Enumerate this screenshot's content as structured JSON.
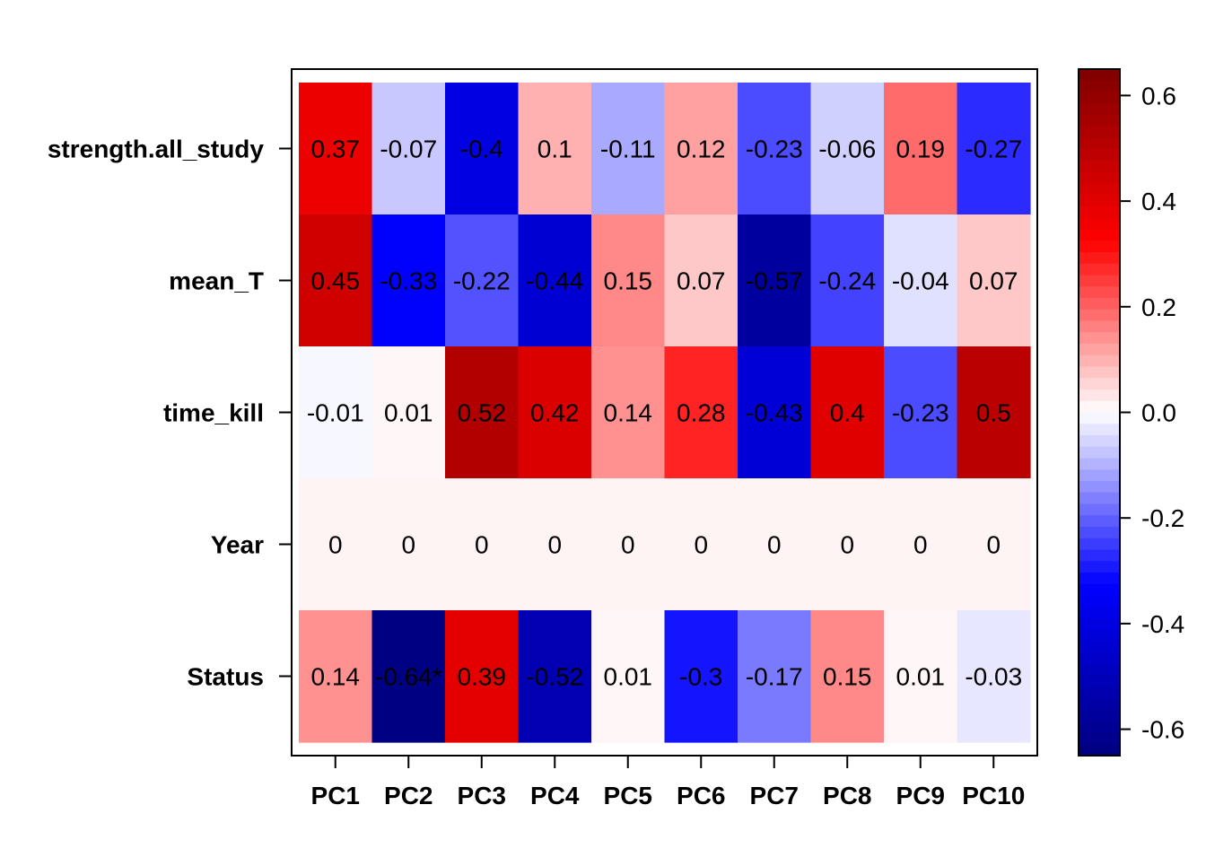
{
  "chart_data": {
    "type": "heatmap",
    "rows": [
      "strength.all_study",
      "mean_T",
      "time_kill",
      "Year",
      "Status"
    ],
    "columns": [
      "PC1",
      "PC2",
      "PC3",
      "PC4",
      "PC5",
      "PC6",
      "PC7",
      "PC8",
      "PC9",
      "PC10"
    ],
    "values": [
      [
        0.37,
        -0.07,
        -0.4,
        0.1,
        -0.11,
        0.12,
        -0.23,
        -0.06,
        0.19,
        -0.27
      ],
      [
        0.45,
        -0.33,
        -0.22,
        -0.44,
        0.15,
        0.07,
        -0.57,
        -0.24,
        -0.04,
        0.07
      ],
      [
        -0.01,
        0.01,
        0.52,
        0.42,
        0.14,
        0.28,
        -0.43,
        0.4,
        -0.23,
        0.5
      ],
      [
        0,
        0,
        0,
        0,
        0,
        0,
        0,
        0,
        0,
        0
      ],
      [
        0.14,
        -0.64,
        0.39,
        -0.52,
        0.01,
        -0.3,
        -0.17,
        0.15,
        0.01,
        -0.03
      ]
    ],
    "cell_labels": [
      [
        "0.37",
        "-0.07",
        "-0.4",
        "0.1",
        "-0.11",
        "0.12",
        "-0.23",
        "-0.06",
        "0.19",
        "-0.27"
      ],
      [
        "0.45",
        "-0.33",
        "-0.22",
        "-0.44",
        "0.15",
        "0.07",
        "-0.57",
        "-0.24",
        "-0.04",
        "0.07"
      ],
      [
        "-0.01",
        "0.01",
        "0.52",
        "0.42",
        "0.14",
        "0.28",
        "-0.43",
        "0.4",
        "-0.23",
        "0.5"
      ],
      [
        "0",
        "0",
        "0",
        "0",
        "0",
        "0",
        "0",
        "0",
        "0",
        "0"
      ],
      [
        "0.14",
        "-0.64*",
        "0.39",
        "-0.52",
        "0.01",
        "-0.3",
        "-0.17",
        "0.15",
        "0.01",
        "-0.03"
      ]
    ],
    "colorbar": {
      "range": [
        -0.65,
        0.65
      ],
      "ticks": [
        0.6,
        0.4,
        0.2,
        0.0,
        -0.2,
        -0.4,
        -0.6
      ],
      "tick_labels": [
        "0.6",
        "0.4",
        "0.2",
        "0.0",
        "-0.2",
        "-0.4",
        "-0.6"
      ],
      "colors": [
        "#00007F",
        "#0000FF",
        "#FFFFFF",
        "#FF0000",
        "#7F0000"
      ]
    },
    "year_row_color": "#FFF4F4"
  }
}
